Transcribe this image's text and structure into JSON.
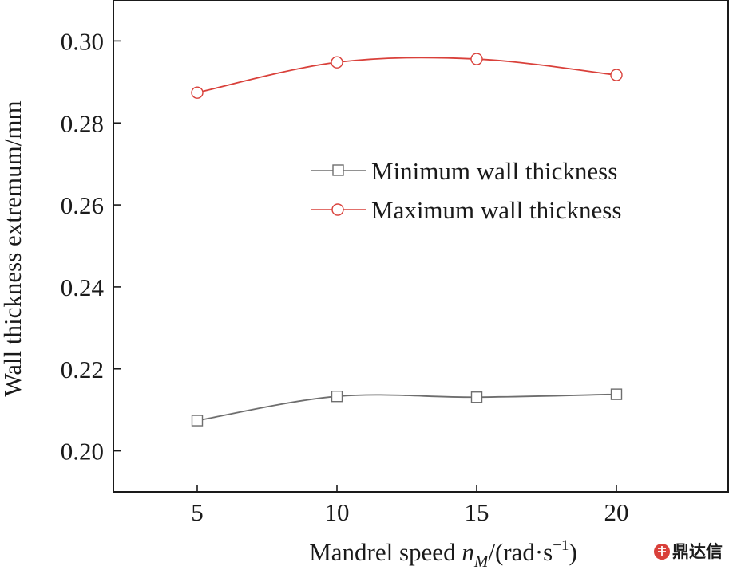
{
  "chart_data": {
    "type": "line",
    "x": [
      5,
      10,
      15,
      20
    ],
    "series": [
      {
        "name": "Minimum wall thickness",
        "values": [
          0.2074,
          0.2133,
          0.2131,
          0.2138
        ],
        "color": "#6e6e6e",
        "marker": "square"
      },
      {
        "name": "Maximum wall thickness",
        "values": [
          0.2874,
          0.2948,
          0.2956,
          0.2917
        ],
        "color": "#d9403a",
        "marker": "circle"
      }
    ],
    "xlabel": "Mandrel speed",
    "xlabel_var": "n",
    "xlabel_sub": "M",
    "xlabel_unit": "/(rad·s",
    "xlabel_sup": "−1",
    "xlabel_close": ")",
    "ylabel": "Wall thickness extremum/mm",
    "xticks": [
      "5",
      "10",
      "15",
      "20"
    ],
    "yticks": [
      "0.20",
      "0.22",
      "0.24",
      "0.26",
      "0.28",
      "0.30"
    ],
    "xlim": [
      2,
      24
    ],
    "ylim": [
      0.19,
      0.31
    ],
    "grid": false,
    "legend_position": "right"
  },
  "watermark": "鼎达信",
  "watermark_icon": "logo-icon"
}
